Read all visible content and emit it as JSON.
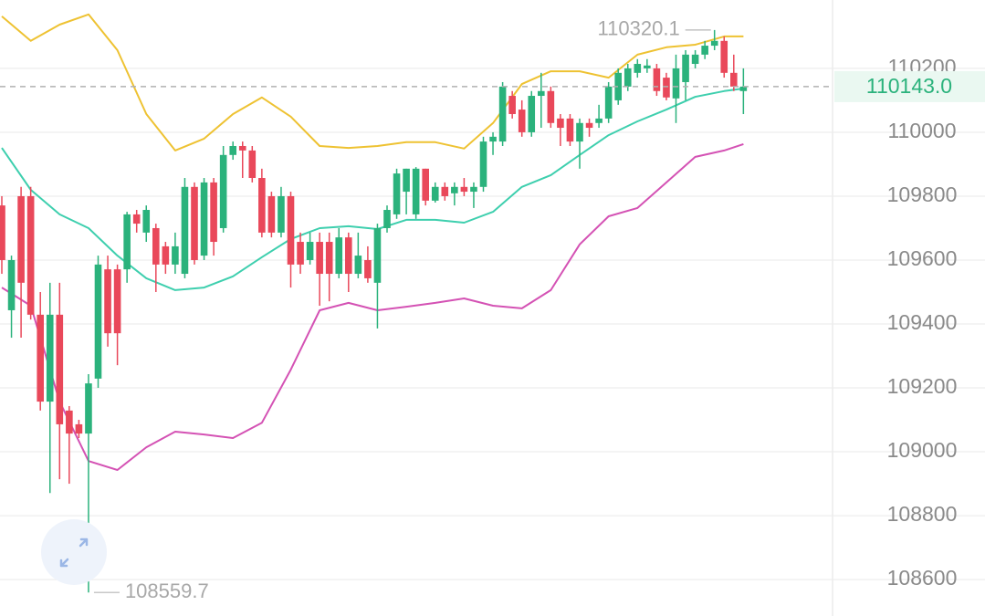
{
  "chart_data": {
    "type": "candlestick",
    "ylim": [
      108486,
      110414
    ],
    "yticks": [
      108600,
      108800,
      109000,
      109200,
      109400,
      109600,
      109800,
      110000,
      110200
    ],
    "grid": true,
    "up_color": "#2bb27c",
    "down_color": "#e9485a",
    "open": [
      109771,
      109443,
      109800,
      109800,
      109429,
      109157,
      109429,
      109129,
      109086,
      109057,
      109229,
      109571,
      109571,
      109571,
      109743,
      109686,
      109700,
      109643,
      109586,
      109557,
      109829,
      109614,
      109843,
      109700,
      109929,
      109957,
      109943,
      109857,
      109800,
      109686,
      109800,
      109657,
      109600,
      109657,
      109657,
      109557,
      109671,
      109557,
      109600,
      109529,
      109700,
      109743,
      109814,
      109743,
      109886,
      109786,
      109829,
      109809,
      109829,
      109814,
      109829,
      109971,
      109971,
      110114,
      110071,
      110000,
      110114,
      110129,
      110043,
      110043,
      109971,
      110029,
      110029,
      110043,
      110100,
      110143,
      110186,
      110200,
      110200,
      110171,
      110106,
      110157,
      110214,
      110243,
      110271,
      110286,
      110186,
      110129
    ],
    "high": [
      109800,
      109614,
      109829,
      109829,
      109500,
      109529,
      109529,
      109143,
      109100,
      109243,
      109614,
      109614,
      109586,
      109751,
      109757,
      109771,
      109714,
      109657,
      109686,
      109857,
      109843,
      109857,
      109857,
      109957,
      109971,
      109971,
      109957,
      109886,
      109814,
      109829,
      109814,
      109686,
      109686,
      109686,
      109686,
      109700,
      109686,
      109686,
      109643,
      109714,
      109771,
      109886,
      109886,
      109891,
      109886,
      109843,
      109843,
      109843,
      109857,
      109843,
      109986,
      110000,
      110157,
      110129,
      110100,
      110129,
      110186,
      110143,
      110057,
      110057,
      110043,
      110043,
      110086,
      110157,
      110200,
      110214,
      110229,
      110229,
      110214,
      110186,
      110243,
      110257,
      110257,
      110286,
      110320.1,
      110300,
      110243,
      110200
    ],
    "low": [
      109557,
      109357,
      109357,
      109414,
      109129,
      108871,
      108914,
      108900,
      109043,
      108559.7,
      109200,
      109329,
      109271,
      109529,
      109686,
      109657,
      109500,
      109557,
      109557,
      109543,
      109586,
      109600,
      109614,
      109686,
      109914,
      109857,
      109843,
      109671,
      109671,
      109671,
      109514,
      109557,
      109586,
      109457,
      109471,
      109543,
      109500,
      109543,
      109529,
      109386,
      109686,
      109729,
      109743,
      109729,
      109771,
      109780,
      109786,
      109771,
      109800,
      109763,
      109814,
      109929,
      109957,
      110043,
      109986,
      109986,
      110014,
      110014,
      109957,
      109957,
      109886,
      109986,
      110014,
      110029,
      110086,
      110129,
      110171,
      110186,
      110114,
      110100,
      110029,
      110100,
      110200,
      110229,
      110257,
      110171,
      110129,
      110057
    ],
    "close": [
      109600,
      109600,
      109529,
      109429,
      109157,
      109429,
      109086,
      109057,
      109057,
      109214,
      109586,
      109371,
      109371,
      109743,
      109714,
      109757,
      109586,
      109586,
      109643,
      109829,
      109600,
      109843,
      109657,
      109929,
      109957,
      109943,
      109857,
      109686,
      109686,
      109800,
      109586,
      109586,
      109657,
      109557,
      109557,
      109671,
      109557,
      109614,
      109543,
      109700,
      109757,
      109871,
      109886,
      109886,
      109786,
      109829,
      109800,
      109829,
      109814,
      109829,
      109971,
      109986,
      110143,
      110057,
      110000,
      110114,
      110129,
      110029,
      110014,
      109971,
      110029,
      110014,
      110043,
      110143,
      110186,
      110200,
      110214,
      110209,
      110129,
      110109,
      110200,
      110243,
      110243,
      110271,
      110286,
      110186,
      110143,
      110143
    ],
    "band_x": [
      0,
      3,
      6,
      9,
      12,
      15,
      18,
      21,
      24,
      27,
      30,
      33,
      36,
      39,
      42,
      45,
      48,
      51,
      54,
      57,
      60,
      63,
      66,
      69,
      72,
      75,
      77
    ],
    "bands": [
      {
        "color": "#eec232",
        "values": [
          110363,
          110286,
          110337,
          110369,
          110257,
          110057,
          109943,
          109980,
          110057,
          110109,
          110049,
          109957,
          109951,
          109957,
          109969,
          109969,
          109949,
          110029,
          110151,
          110191,
          110191,
          110171,
          110243,
          110266,
          110274,
          110300,
          110300
        ]
      },
      {
        "color": "#3ecfae",
        "values": [
          109951,
          109820,
          109743,
          109700,
          109614,
          109543,
          109506,
          109514,
          109549,
          109609,
          109666,
          109700,
          109706,
          109697,
          109726,
          109726,
          109717,
          109751,
          109829,
          109866,
          109929,
          109991,
          110034,
          110071,
          110111,
          110129,
          110137
        ]
      },
      {
        "color": "#d452b4",
        "values": [
          109514,
          109457,
          109157,
          108971,
          108943,
          109014,
          109063,
          109054,
          109043,
          109091,
          109257,
          109443,
          109466,
          109443,
          109454,
          109466,
          109480,
          109457,
          109449,
          109506,
          109649,
          109737,
          109763,
          109843,
          109923,
          109943,
          109963
        ]
      }
    ],
    "last_price": {
      "value": 110143,
      "label": "110143.0"
    }
  }
}
